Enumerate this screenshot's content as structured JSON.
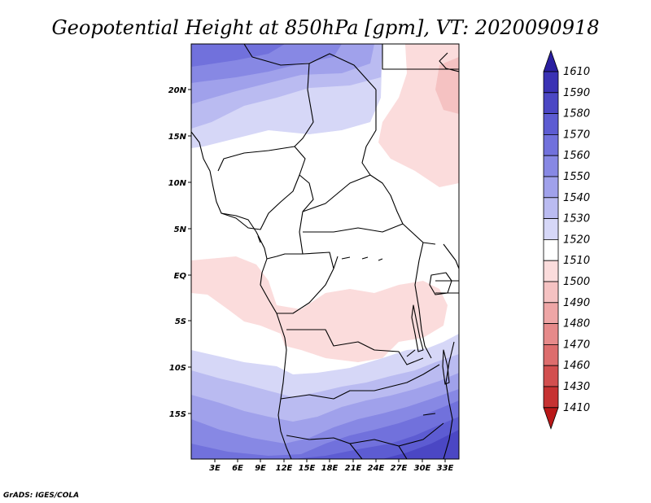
{
  "map": {
    "title": "Geopotential Height at 850hPa [gpm], VT: 2020090918",
    "credit": "GrADS: IGES/COLA",
    "lat_labels": [
      "20N",
      "15N",
      "10N",
      "5N",
      "EQ",
      "5S",
      "10S",
      "15S"
    ],
    "lon_labels": [
      "3E",
      "6E",
      "9E",
      "12E",
      "15E",
      "18E",
      "21E",
      "24E",
      "27E",
      "30E",
      "33E"
    ],
    "colorbar": {
      "levels": [
        "1610",
        "1590",
        "1580",
        "1570",
        "1560",
        "1550",
        "1540",
        "1530",
        "1520",
        "1510",
        "1500",
        "1490",
        "1480",
        "1470",
        "1460",
        "1430",
        "1410"
      ],
      "colors": [
        "#2a1fa0",
        "#3a32b4",
        "#4b47c4",
        "#5d5cd2",
        "#7171dc",
        "#8788e4",
        "#a0a1eb",
        "#babbf1",
        "#d6d7f7",
        "#ffffff",
        "#fbdcdc",
        "#f5c2c2",
        "#eea6a6",
        "#e68a8a",
        "#dd6d6d",
        "#d24f4f",
        "#c63232",
        "#b91818"
      ],
      "extend": "both"
    }
  }
}
